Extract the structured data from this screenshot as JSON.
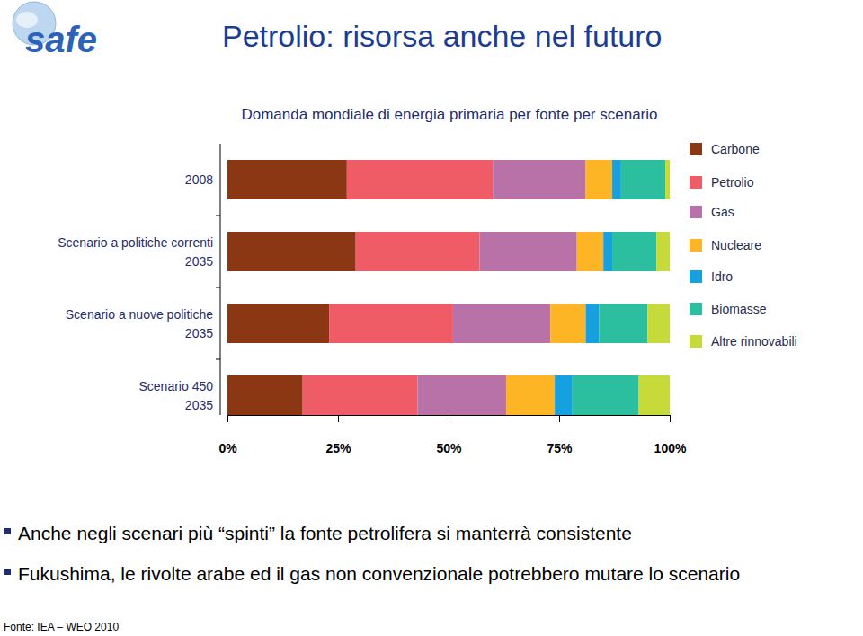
{
  "page": {
    "logo": "safe",
    "title": "Petrolio: risorsa anche nel futuro",
    "bullets": [
      "Anche negli scenari più “spinti” la fonte petrolifera si manterrà consistente",
      "Fukushima, le rivolte arabe ed il gas non convenzionale potrebbero mutare lo scenario"
    ],
    "source": "Fonte: IEA – WEO 2010"
  },
  "chart_data": {
    "type": "bar",
    "title": "Domanda mondiale di energia primaria per fonte per scenario",
    "orientation": "horizontal",
    "stacked": true,
    "categories": [
      "2008",
      "Scenario a politiche correnti\n2035",
      "Scenario a nuove politiche\n2035",
      "Scenario  450\n2035"
    ],
    "series": [
      {
        "name": "Carbone",
        "color": "#8b3714",
        "values": [
          27,
          29,
          23,
          17
        ]
      },
      {
        "name": "Petrolio",
        "color": "#f05c66",
        "values": [
          33,
          28,
          28,
          26
        ]
      },
      {
        "name": "Gas",
        "color": "#b872a8",
        "values": [
          21,
          22,
          22,
          20
        ]
      },
      {
        "name": "Nucleare",
        "color": "#fdb425",
        "values": [
          6,
          6,
          8,
          11
        ]
      },
      {
        "name": "Idro",
        "color": "#17a0e0",
        "values": [
          2,
          2,
          3,
          4
        ]
      },
      {
        "name": "Biomasse",
        "color": "#2bbfa0",
        "values": [
          10,
          10,
          11,
          15
        ]
      },
      {
        "name": "Altre rinnovabili",
        "color": "#c6da3a",
        "values": [
          1,
          3,
          5,
          7
        ]
      }
    ],
    "xlim": [
      0,
      100
    ],
    "xticks": [
      {
        "value": 0,
        "label": "0%"
      },
      {
        "value": 25,
        "label": "25%"
      },
      {
        "value": 50,
        "label": "50%"
      },
      {
        "value": 75,
        "label": "75%"
      },
      {
        "value": 100,
        "label": "100%"
      }
    ],
    "legend": "right"
  }
}
